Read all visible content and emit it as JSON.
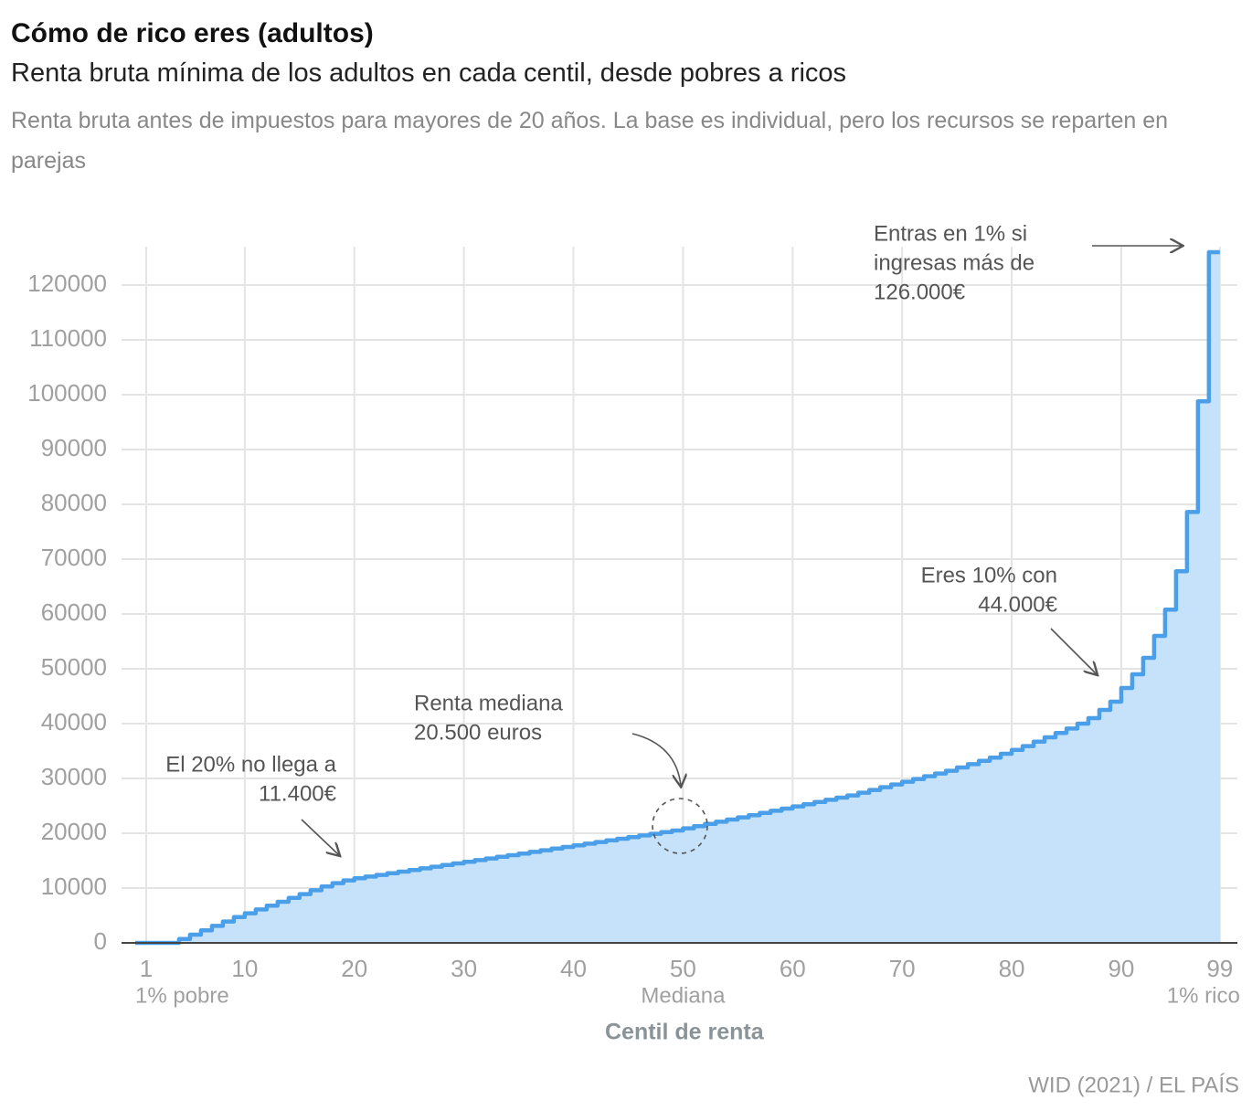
{
  "chart_data": {
    "type": "step",
    "title": "Cómo de rico eres (adultos)",
    "subtitle": "Renta bruta mínima de los adultos en cada centil, desde pobres a ricos",
    "description": "Renta bruta antes de impuestos para mayores de 20 años. La base es individual, pero los recursos se reparten en parejas",
    "x_label": "Centil de renta",
    "source": "WID (2021) / EL PAÍS",
    "color": "#4a9fe8",
    "fill_color": "#c6e2fb",
    "x": [
      1,
      2,
      3,
      4,
      5,
      6,
      7,
      8,
      9,
      10,
      11,
      12,
      13,
      14,
      15,
      16,
      17,
      18,
      19,
      20,
      21,
      22,
      23,
      24,
      25,
      26,
      27,
      28,
      29,
      30,
      31,
      32,
      33,
      34,
      35,
      36,
      37,
      38,
      39,
      40,
      41,
      42,
      43,
      44,
      45,
      46,
      47,
      48,
      49,
      50,
      51,
      52,
      53,
      54,
      55,
      56,
      57,
      58,
      59,
      60,
      61,
      62,
      63,
      64,
      65,
      66,
      67,
      68,
      69,
      70,
      71,
      72,
      73,
      74,
      75,
      76,
      77,
      78,
      79,
      80,
      81,
      82,
      83,
      84,
      85,
      86,
      87,
      88,
      89,
      90,
      91,
      92,
      93,
      94,
      95,
      96,
      97,
      98,
      99
    ],
    "values": [
      0,
      0,
      0,
      0,
      700,
      1500,
      2300,
      3100,
      3900,
      4700,
      5400,
      6100,
      6800,
      7500,
      8200,
      8900,
      9600,
      10300,
      10900,
      11400,
      11800,
      12100,
      12400,
      12700,
      13000,
      13300,
      13600,
      13900,
      14200,
      14500,
      14800,
      15100,
      15400,
      15700,
      16000,
      16300,
      16600,
      16900,
      17200,
      17500,
      17800,
      18100,
      18400,
      18700,
      19000,
      19300,
      19600,
      19900,
      20200,
      20500,
      20900,
      21300,
      21700,
      22100,
      22500,
      22900,
      23300,
      23700,
      24100,
      24500,
      24900,
      25300,
      25700,
      26100,
      26500,
      26900,
      27400,
      27900,
      28400,
      28900,
      29400,
      29900,
      30400,
      30900,
      31400,
      32000,
      32600,
      33200,
      33800,
      34500,
      35200,
      35900,
      36700,
      37500,
      38300,
      39100,
      40000,
      41000,
      42500,
      44000,
      46500,
      49000,
      52000,
      56000,
      60800,
      67800,
      78600,
      98800,
      126000
    ],
    "xlim": [
      -1.25,
      100.6
    ],
    "ylim": [
      0,
      127000
    ],
    "xticks": [
      1,
      10,
      20,
      30,
      40,
      50,
      60,
      70,
      80,
      90,
      99
    ],
    "yticks": [
      0,
      10000,
      20000,
      30000,
      40000,
      50000,
      60000,
      70000,
      80000,
      90000,
      100000,
      110000,
      120000
    ],
    "xtick_sublabels": [
      {
        "value": 1,
        "label": "1% pobre"
      },
      {
        "value": 50,
        "label": "Mediana"
      },
      {
        "value": 99,
        "label": "1% rico"
      }
    ],
    "grid": true,
    "annotations": [
      {
        "lines": [
          "Entras en 1% si",
          "ingresas más de",
          "126.000€"
        ]
      },
      {
        "lines": [
          "Eres 10% con",
          "44.000€"
        ]
      },
      {
        "lines": [
          "Renta mediana",
          "20.500 euros"
        ]
      },
      {
        "lines": [
          "El 20% no llega a",
          "11.400€"
        ]
      }
    ]
  }
}
